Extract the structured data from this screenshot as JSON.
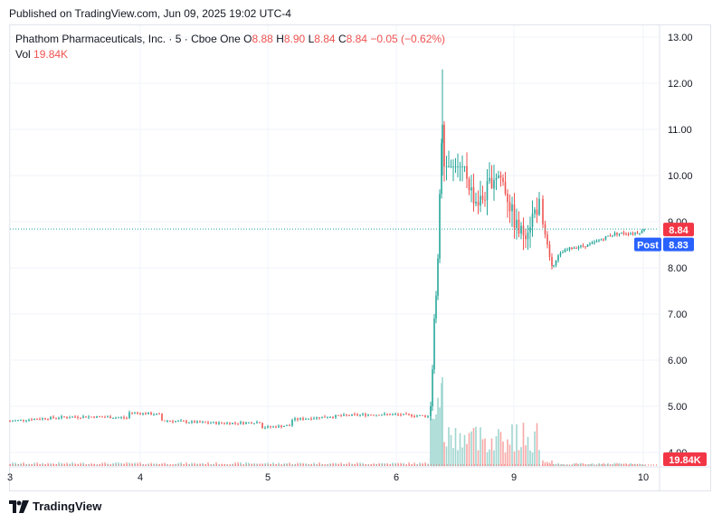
{
  "header": {
    "published": "Published on TradingView.com, Jun 09, 2025 19:02 UTC-4"
  },
  "legend": {
    "symbol": "Phathom Pharmaceuticals, Inc. · 5 · Cboe One",
    "o_label": "O",
    "o_value": "8.88",
    "h_label": "H",
    "h_value": "8.90",
    "l_label": "L",
    "l_value": "8.84",
    "c_label": "C",
    "c_value": "8.84",
    "change": "−0.05 (−0.62%)",
    "vol_label": "Vol",
    "vol_value": "19.84K"
  },
  "logo": {
    "text": "TradingView",
    "icon": "tradingview-logo-icon"
  },
  "colors": {
    "up": "#26a69a",
    "down": "#ef5350",
    "up_volume": "#9fd6d0",
    "down_volume": "#f7a9a7",
    "post_badge": "#2962ff",
    "last_price_badge": "#f23645",
    "grid": "#f0f3fa",
    "axis_text": "#131722"
  },
  "chart_data": {
    "type": "candlestick",
    "interval": "5",
    "y_axis": {
      "ticks": [
        "13.00",
        "12.00",
        "11.00",
        "10.00",
        "9.00",
        "8.00",
        "7.00",
        "6.00",
        "5.00",
        "4.00"
      ],
      "ylim": [
        3.6,
        13.5
      ],
      "side": "right"
    },
    "x_axis": {
      "ticks": [
        "3",
        "4",
        "5",
        "6",
        "9",
        "10"
      ]
    },
    "grid": true,
    "price_labels": [
      {
        "text": "8.84",
        "value": 8.84,
        "kind": "last"
      },
      {
        "text": "Post",
        "kind": "post-tag"
      },
      {
        "text": "8.83",
        "value": 8.83,
        "kind": "post"
      },
      {
        "text": "19.84K",
        "kind": "volume"
      }
    ],
    "last_price": 8.84,
    "post_price": 8.83,
    "segments": [
      {
        "name": "pre-jump",
        "x_from": "3",
        "x_to": "6",
        "start": 4.68,
        "end": 4.75,
        "trend": "flat",
        "low": 4.55,
        "high": 4.95
      },
      {
        "name": "jump",
        "x_from": "6",
        "x_to": "6",
        "start": 4.75,
        "end": 10.7,
        "trend": "spike"
      },
      {
        "name": "peak",
        "value": 12.3
      },
      {
        "name": "post-peak",
        "x_from": "6",
        "x_to": "9",
        "start": 10.7,
        "end": 8.9,
        "trend": "volatile-decline",
        "low": 8.3,
        "high": 10.2
      },
      {
        "name": "dip",
        "x_from": "9",
        "x_to": "9",
        "start": 8.9,
        "end": 8.05,
        "trend": "decline"
      },
      {
        "name": "recovery",
        "x_from": "9",
        "x_to": "10",
        "start": 8.05,
        "end": 8.84,
        "trend": "gradual-rise"
      }
    ]
  }
}
